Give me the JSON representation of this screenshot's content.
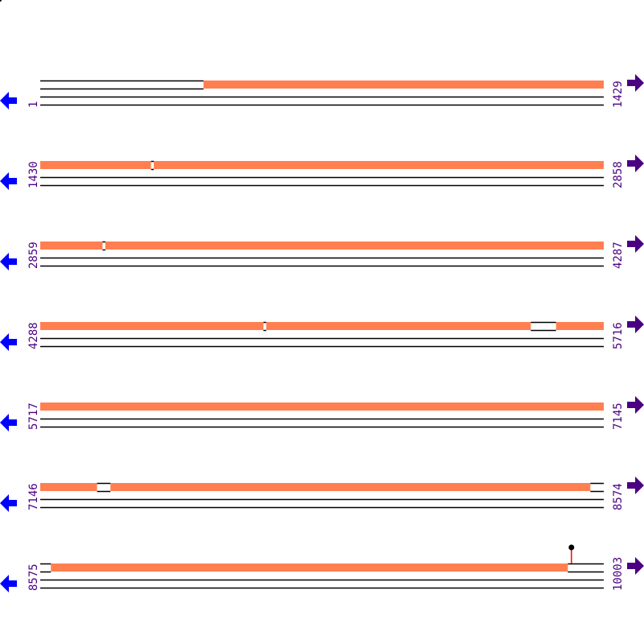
{
  "colors": {
    "coverage": "#ff7f50",
    "track_line": "#000000",
    "left_arrow": "#0000ff",
    "right_arrow": "#4b0082",
    "label": "#4b0082",
    "marker_stem": "#ff0000",
    "marker_head": "#000000"
  },
  "icons": {
    "left": "arrow-left-icon",
    "right": "arrow-right-icon"
  },
  "rows": [
    {
      "start": "1",
      "end": "1429",
      "s": 1,
      "e": 1429,
      "covered": [
        [
          415,
          1429
        ]
      ]
    },
    {
      "start": "1430",
      "end": "2858",
      "s": 1430,
      "e": 2858,
      "covered": [
        [
          1430,
          1710
        ],
        [
          1718,
          2858
        ]
      ]
    },
    {
      "start": "2859",
      "end": "4287",
      "s": 2859,
      "e": 4287,
      "covered": [
        [
          2859,
          3016
        ],
        [
          3024,
          4287
        ]
      ]
    },
    {
      "start": "4288",
      "end": "5716",
      "s": 4288,
      "e": 5716,
      "covered": [
        [
          4288,
          4853
        ],
        [
          4861,
          5531
        ],
        [
          5596,
          5716
        ]
      ]
    },
    {
      "start": "5717",
      "end": "7145",
      "s": 5717,
      "e": 7145,
      "covered": [
        [
          5717,
          7145
        ]
      ]
    },
    {
      "start": "7146",
      "end": "8574",
      "s": 7146,
      "e": 8574,
      "covered": [
        [
          7146,
          7289
        ],
        [
          7324,
          8540
        ]
      ]
    },
    {
      "start": "8575",
      "end": "10003",
      "s": 8575,
      "e": 10003,
      "covered": [
        [
          8602,
          9912
        ]
      ],
      "markers": [
        9922
      ]
    }
  ]
}
